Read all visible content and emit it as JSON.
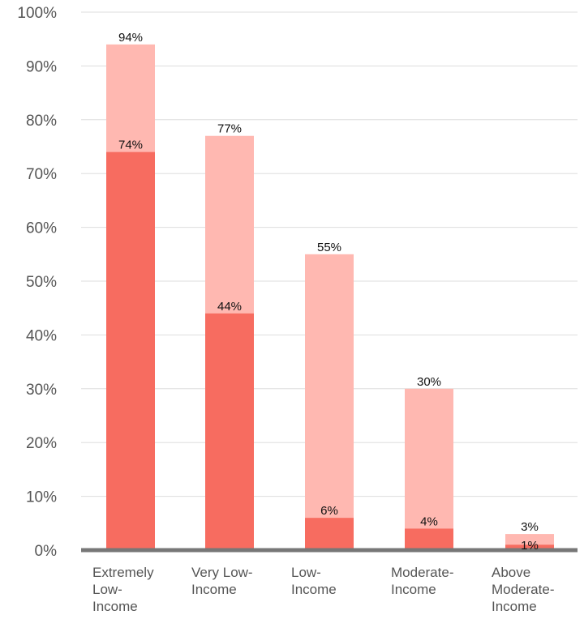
{
  "chart_data": {
    "type": "bar",
    "stacked": false,
    "overlaid": true,
    "categories": [
      [
        "Extremely",
        "Low-",
        "Income"
      ],
      [
        "Very Low-",
        "Income"
      ],
      [
        "Low-",
        "Income"
      ],
      [
        "Moderate-",
        "Income"
      ],
      [
        "Above",
        "Moderate-",
        "Income"
      ]
    ],
    "series": [
      {
        "color": "#ffb8b1",
        "values": [
          94,
          77,
          55,
          30,
          3
        ],
        "labels": [
          "94%",
          "77%",
          "55%",
          "30%",
          "3%"
        ]
      },
      {
        "color": "#f76c60",
        "values": [
          74,
          44,
          6,
          4,
          1
        ],
        "labels": [
          "74%",
          "44%",
          "6%",
          "4%",
          "1%"
        ]
      }
    ],
    "yticks": [
      "0%",
      "10%",
      "20%",
      "30%",
      "40%",
      "50%",
      "60%",
      "70%",
      "80%",
      "90%",
      "100%"
    ],
    "ylim": [
      0,
      100
    ],
    "grid": true,
    "legend": "none",
    "title": "",
    "xlabel": "",
    "ylabel": ""
  }
}
